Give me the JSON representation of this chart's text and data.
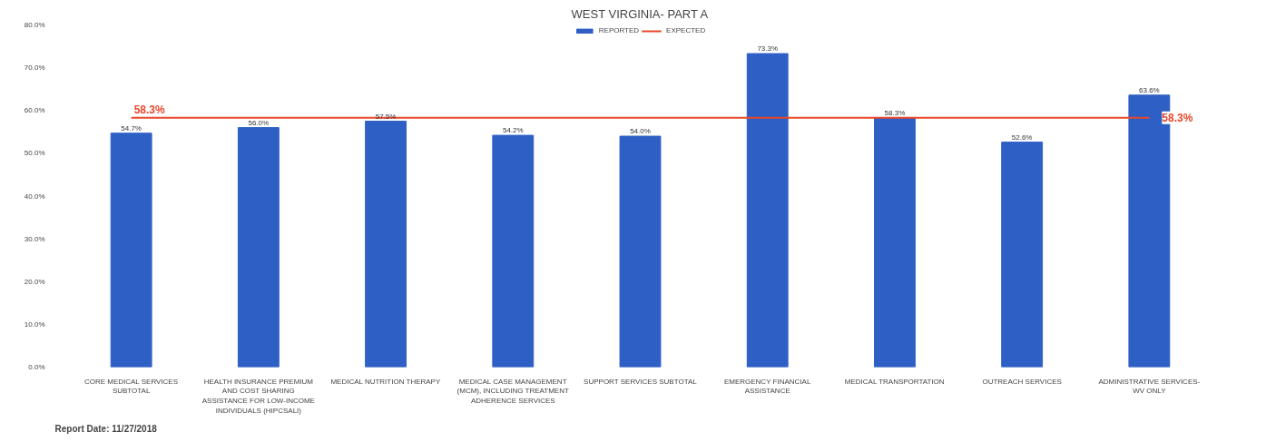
{
  "chart_data": {
    "type": "bar",
    "title": "WEST VIRGINIA- PART A",
    "categories": [
      "CORE MEDICAL SERVICES SUBTOTAL",
      "HEALTH INSURANCE PREMIUM AND COST SHARING ASSISTANCE FOR LOW-INCOME INDIVIDUALS (HIPCSALI)",
      "MEDICAL NUTRITION THERAPY",
      "MEDICAL CASE MANAGEMENT (MCM), INCLUDING TREATMENT ADHERENCE SERVICES",
      "SUPPORT SERVICES SUBTOTAL",
      "EMERGENCY FINANCIAL ASSISTANCE",
      "MEDICAL TRANSPORTATION",
      "OUTREACH SERVICES",
      "ADMINISTRATIVE SERVICES- WV ONLY"
    ],
    "series": [
      {
        "name": "REPORTED",
        "color": "#2e5fc4",
        "values": [
          54.7,
          56.0,
          57.5,
          54.2,
          54.0,
          73.3,
          58.3,
          52.6,
          63.6
        ],
        "value_labels": [
          "54.7%",
          "56.0%",
          "57.5%",
          "54.2%",
          "54.0%",
          "73.3%",
          "58.3%",
          "52.6%",
          "63.6%"
        ]
      },
      {
        "name": "EXPECTED",
        "type": "line",
        "color": "#e8472a",
        "values": [
          58.3,
          58.3,
          58.3,
          58.3,
          58.3,
          58.3,
          58.3,
          58.3,
          58.3
        ],
        "value_labels": [
          "58.3%",
          null,
          null,
          null,
          null,
          null,
          null,
          null,
          "58.3%"
        ]
      }
    ],
    "ylim": [
      0,
      80
    ],
    "yticks": [
      {
        "value": 0,
        "label": "0.0%"
      },
      {
        "value": 10,
        "label": "10.0%"
      },
      {
        "value": 20,
        "label": "20.0%"
      },
      {
        "value": 30,
        "label": "30.0%"
      },
      {
        "value": 40,
        "label": "40.0%"
      },
      {
        "value": 50,
        "label": "50.0%"
      },
      {
        "value": 60,
        "label": "60.0%"
      },
      {
        "value": 70,
        "label": "70.0%"
      },
      {
        "value": 80,
        "label": "80.0%"
      }
    ],
    "grid": false,
    "legend": "top",
    "annotations": [
      "Report Date: 11/27/2018"
    ]
  }
}
